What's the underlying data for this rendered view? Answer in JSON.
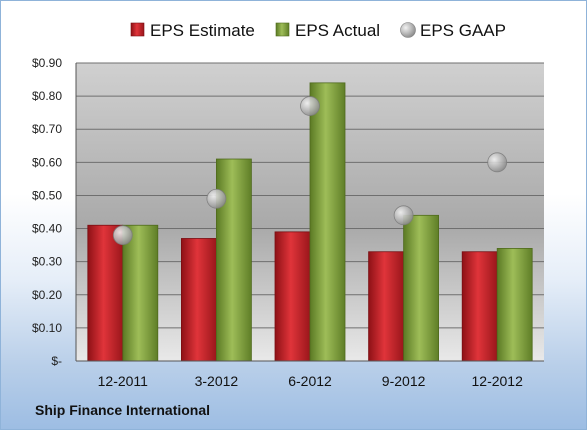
{
  "company": "Ship Finance International",
  "chart_data": {
    "type": "bar",
    "categories": [
      "12-2011",
      "3-2012",
      "6-2012",
      "9-2012",
      "12-2012"
    ],
    "series": [
      {
        "name": "EPS Estimate",
        "kind": "bar",
        "color": "#c0262b",
        "values": [
          0.41,
          0.37,
          0.39,
          0.33,
          0.33
        ]
      },
      {
        "name": "EPS Actual",
        "kind": "bar",
        "color": "#7a9a3a",
        "values": [
          0.41,
          0.61,
          0.84,
          0.44,
          0.34
        ]
      },
      {
        "name": "EPS GAAP",
        "kind": "marker",
        "color": "#a8a8a8",
        "values": [
          0.38,
          0.49,
          0.77,
          0.44,
          0.6
        ]
      }
    ],
    "yticks": [
      "$-",
      "$0.10",
      "$0.20",
      "$0.30",
      "$0.40",
      "$0.50",
      "$0.60",
      "$0.70",
      "$0.80",
      "$0.90"
    ],
    "ylim": [
      0,
      0.9
    ],
    "grid": true,
    "legend_position": "top"
  }
}
